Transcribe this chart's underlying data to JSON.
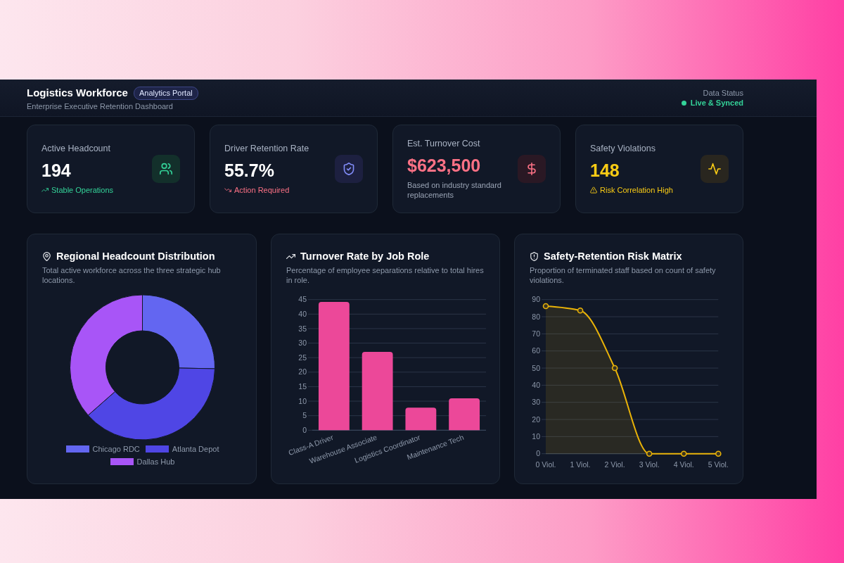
{
  "chart_data": [
    {
      "type": "other",
      "title": "Logistics Workforce",
      "subtitle": "Enterprise Executive Retention Dashboard",
      "annotations": [
        "Analytics Portal",
        "Data Status",
        "Live & Synced"
      ]
    },
    {
      "type": "other",
      "title": "Active Headcount",
      "annotations": [
        "194",
        "Stable Operations"
      ]
    },
    {
      "type": "other",
      "title": "Driver Retention Rate",
      "annotations": [
        "55.7%",
        "Action Required"
      ]
    },
    {
      "type": "other",
      "title": "Est. Turnover Cost",
      "annotations": [
        "$623,500",
        "Based on industry standard replacements"
      ]
    },
    {
      "type": "other",
      "title": "Safety Violations",
      "annotations": [
        "148",
        "Risk Correlation High"
      ]
    },
    {
      "type": "donut",
      "title": "Regional Headcount Distribution",
      "subtitle": "Total active workforce across the three strategic hub locations.",
      "categories": [
        "Chicago RDC",
        "Atlanta Depot",
        "Dallas Hub"
      ],
      "values": [
        25.3,
        38.2,
        36.5
      ],
      "colors": [
        "#6366f1",
        "#4f46e5",
        "#a855f7"
      ],
      "legend": "bottom"
    },
    {
      "type": "bar",
      "title": "Turnover Rate by Job Role",
      "subtitle": "Percentage of employee separations relative to total hires in role.",
      "categories": [
        "Class-A Driver",
        "Warehouse Associate",
        "Logistics Coordinator",
        "Maintenance Tech"
      ],
      "values": [
        44.2,
        27,
        7.8,
        11
      ],
      "color": "#ec4899",
      "ylim": [
        0,
        45
      ],
      "yticks": [
        0,
        5,
        10,
        15,
        20,
        25,
        30,
        35,
        40,
        45
      ],
      "grid": "y"
    },
    {
      "type": "area",
      "title": "Safety-Retention Risk Matrix",
      "subtitle": "Proportion of terminated staff based on count of safety violations.",
      "categories": [
        "0 Viol.",
        "1 Viol.",
        "2 Viol.",
        "3 Viol.",
        "4 Viol.",
        "5 Viol."
      ],
      "values": [
        86.2,
        83.6,
        50,
        0,
        0,
        0
      ],
      "color": "#eab308",
      "ylim": [
        0,
        90
      ],
      "yticks": [
        0,
        10,
        20,
        30,
        40,
        50,
        60,
        70,
        80,
        90
      ],
      "grid": "y",
      "marker": "circle"
    }
  ]
}
